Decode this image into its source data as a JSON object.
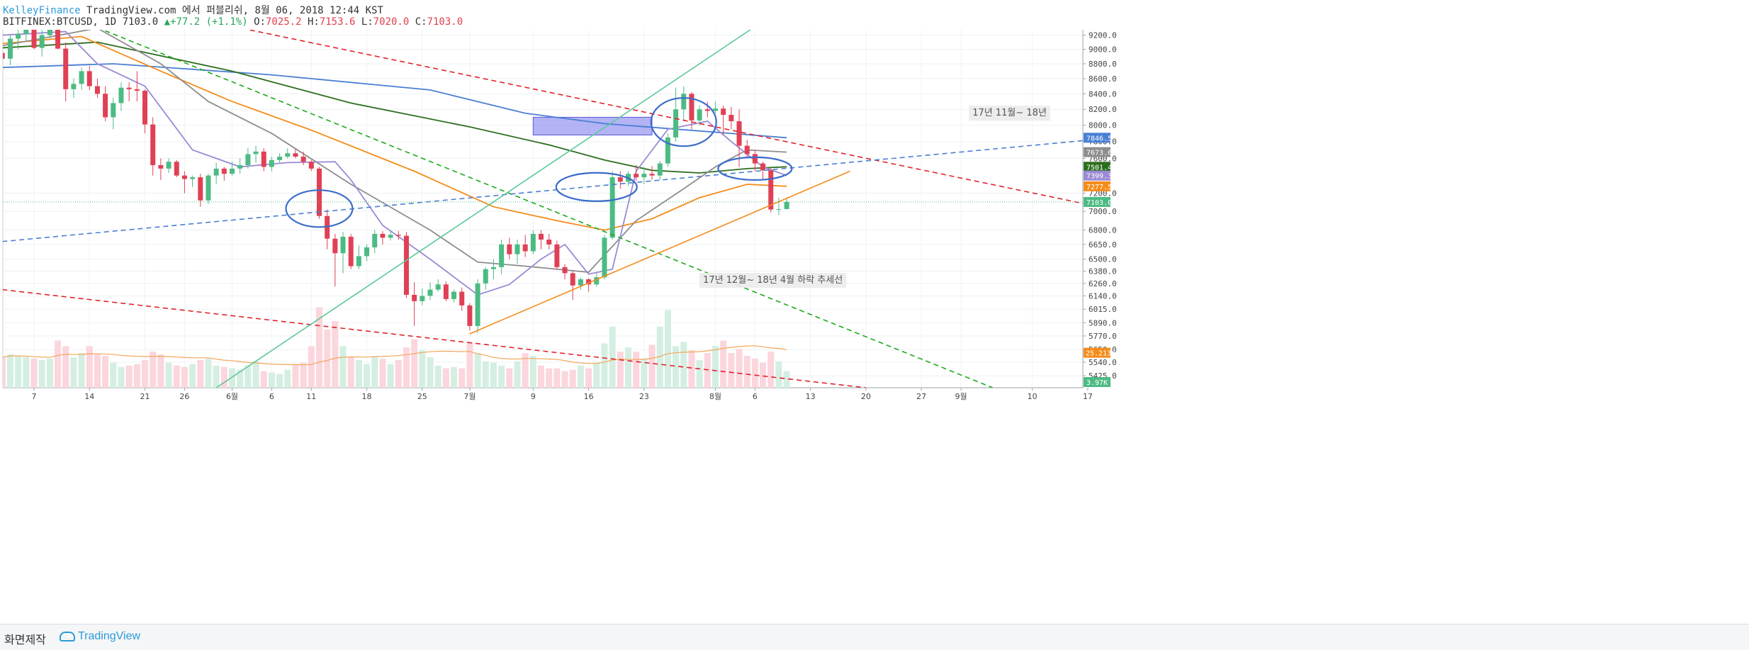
{
  "header": {
    "brand": "KelleyFinance",
    "published": "TradingView.com 에서 퍼블리쉬, 8월 06, 2018 12:44 KST",
    "symbol": "BITFINEX:BTCUSD, 1D",
    "last": "7103.0",
    "change": "+77.2 (+1.1%)",
    "o_label": "O:",
    "o": "7025.2",
    "h_label": "H:",
    "h": "7153.6",
    "l_label": "L:",
    "l": "7020.0",
    "c_label": "C:",
    "c": "7103.0"
  },
  "footer": {
    "credit": "화면제작",
    "logo": "TradingView",
    "logo_icon": "cloud-icon"
  },
  "chart_data": {
    "type": "candlestick",
    "symbol": "BITFINEX:BTCUSD",
    "interval": "1D",
    "ylim": [
      5325,
      9400
    ],
    "y_scale": "log",
    "up_color": "#4cbb83",
    "down_color": "#e04055",
    "grid": true,
    "price_ticks": [
      "9200.0",
      "9000.0",
      "8800.0",
      "8600.0",
      "8400.0",
      "8200.0",
      "8000.0",
      "7800.0",
      "7600.0",
      "7200.0",
      "7000.0",
      "6800.0",
      "6650.0",
      "6500.0",
      "6380.0",
      "6260.0",
      "6140.0",
      "6015.0",
      "5890.0",
      "5770.0",
      "5650.0",
      "5540.0",
      "5425.0"
    ],
    "time_labels": [
      {
        "text": "7",
        "day": 0
      },
      {
        "text": "14",
        "day": 7
      },
      {
        "text": "21",
        "day": 14
      },
      {
        "text": "26",
        "day": 19
      },
      {
        "text": "6월",
        "day": 25
      },
      {
        "text": "6",
        "day": 30
      },
      {
        "text": "11",
        "day": 35
      },
      {
        "text": "18",
        "day": 42
      },
      {
        "text": "25",
        "day": 49
      },
      {
        "text": "7월",
        "day": 55
      },
      {
        "text": "9",
        "day": 63
      },
      {
        "text": "16",
        "day": 70
      },
      {
        "text": "23",
        "day": 77
      },
      {
        "text": "8월",
        "day": 86
      },
      {
        "text": "6",
        "day": 91
      },
      {
        "text": "13",
        "day": 98
      },
      {
        "text": "20",
        "day": 105
      },
      {
        "text": "27",
        "day": 112
      },
      {
        "text": "9월",
        "day": 117
      },
      {
        "text": "10",
        "day": 126
      },
      {
        "text": "17",
        "day": 133
      }
    ],
    "start_day_index": -4,
    "candles_ohlc": [
      [
        8950,
        9250,
        8800,
        8870
      ],
      [
        8870,
        9200,
        8780,
        9150
      ],
      [
        9150,
        9300,
        9000,
        9220
      ],
      [
        9220,
        9400,
        9120,
        9300
      ],
      [
        9300,
        9400,
        9000,
        9020
      ],
      [
        9020,
        9300,
        8900,
        9200
      ],
      [
        9200,
        9400,
        9150,
        9300
      ],
      [
        9300,
        9380,
        9000,
        9010
      ],
      [
        9010,
        9100,
        8300,
        8460
      ],
      [
        8460,
        8600,
        8350,
        8530
      ],
      [
        8530,
        8750,
        8450,
        8700
      ],
      [
        8700,
        8770,
        8450,
        8500
      ],
      [
        8500,
        8600,
        8350,
        8400
      ],
      [
        8400,
        8500,
        8050,
        8100
      ],
      [
        8100,
        8350,
        7950,
        8280
      ],
      [
        8280,
        8550,
        8180,
        8480
      ],
      [
        8480,
        8550,
        8300,
        8460
      ],
      [
        8460,
        8700,
        8300,
        8440
      ],
      [
        8440,
        8460,
        7900,
        8010
      ],
      [
        8010,
        8100,
        7400,
        7520
      ],
      [
        7520,
        7600,
        7350,
        7480
      ],
      [
        7480,
        7600,
        7430,
        7560
      ],
      [
        7560,
        7580,
        7380,
        7400
      ],
      [
        7400,
        7450,
        7200,
        7360
      ],
      [
        7360,
        7400,
        7270,
        7380
      ],
      [
        7380,
        7420,
        7050,
        7120
      ],
      [
        7120,
        7420,
        7080,
        7400
      ],
      [
        7400,
        7550,
        7300,
        7480
      ],
      [
        7480,
        7500,
        7340,
        7420
      ],
      [
        7420,
        7560,
        7400,
        7480
      ],
      [
        7480,
        7600,
        7420,
        7520
      ],
      [
        7520,
        7720,
        7480,
        7650
      ],
      [
        7650,
        7750,
        7550,
        7680
      ],
      [
        7680,
        7720,
        7450,
        7500
      ],
      [
        7500,
        7620,
        7450,
        7580
      ],
      [
        7580,
        7660,
        7550,
        7620
      ],
      [
        7620,
        7720,
        7600,
        7660
      ],
      [
        7660,
        7710,
        7600,
        7620
      ],
      [
        7620,
        7680,
        7520,
        7560
      ],
      [
        7560,
        7580,
        7450,
        7480
      ],
      [
        7480,
        7500,
        6920,
        6950
      ],
      [
        6950,
        7020,
        6600,
        6710
      ],
      [
        6710,
        6760,
        6230,
        6560
      ],
      [
        6560,
        6780,
        6360,
        6730
      ],
      [
        6730,
        6760,
        6400,
        6430
      ],
      [
        6430,
        6640,
        6400,
        6530
      ],
      [
        6530,
        6650,
        6480,
        6620
      ],
      [
        6620,
        6800,
        6560,
        6760
      ],
      [
        6760,
        6790,
        6650,
        6720
      ],
      [
        6720,
        6800,
        6690,
        6750
      ],
      [
        6750,
        6790,
        6700,
        6740
      ],
      [
        6740,
        6780,
        6120,
        6150
      ],
      [
        6150,
        6270,
        5860,
        6090
      ],
      [
        6090,
        6210,
        6050,
        6140
      ],
      [
        6140,
        6270,
        6100,
        6200
      ],
      [
        6200,
        6300,
        6180,
        6250
      ],
      [
        6250,
        6280,
        6090,
        6110
      ],
      [
        6110,
        6200,
        6080,
        6180
      ],
      [
        6180,
        6220,
        6000,
        6050
      ],
      [
        6050,
        6070,
        5820,
        5860
      ],
      [
        5860,
        6300,
        5800,
        6260
      ],
      [
        6260,
        6420,
        6200,
        6400
      ],
      [
        6400,
        6500,
        6300,
        6420
      ],
      [
        6420,
        6700,
        6350,
        6650
      ],
      [
        6650,
        6720,
        6500,
        6550
      ],
      [
        6550,
        6700,
        6450,
        6650
      ],
      [
        6650,
        6750,
        6520,
        6580
      ],
      [
        6580,
        6800,
        6550,
        6760
      ],
      [
        6760,
        6800,
        6600,
        6700
      ],
      [
        6700,
        6760,
        6600,
        6650
      ],
      [
        6650,
        6690,
        6400,
        6420
      ],
      [
        6420,
        6450,
        6300,
        6360
      ],
      [
        6360,
        6380,
        6100,
        6240
      ],
      [
        6240,
        6320,
        6200,
        6300
      ],
      [
        6300,
        6310,
        6180,
        6250
      ],
      [
        6250,
        6360,
        6230,
        6320
      ],
      [
        6320,
        6750,
        6300,
        6720
      ],
      [
        6720,
        7450,
        6700,
        7380
      ],
      [
        7380,
        7450,
        7250,
        7330
      ],
      [
        7330,
        7450,
        7280,
        7420
      ],
      [
        7420,
        7520,
        7340,
        7380
      ],
      [
        7380,
        7500,
        7300,
        7420
      ],
      [
        7420,
        7510,
        7350,
        7400
      ],
      [
        7400,
        7570,
        7350,
        7540
      ],
      [
        7540,
        7900,
        7500,
        7850
      ],
      [
        7850,
        8480,
        7800,
        8200
      ],
      [
        8200,
        8500,
        8050,
        8400
      ],
      [
        8400,
        8420,
        7950,
        8060
      ],
      [
        8060,
        8250,
        8000,
        8200
      ],
      [
        8200,
        8300,
        8100,
        8180
      ],
      [
        8180,
        8300,
        8150,
        8210
      ],
      [
        8210,
        8250,
        7880,
        8130
      ],
      [
        8130,
        8230,
        7950,
        8050
      ],
      [
        8050,
        8200,
        7500,
        7750
      ],
      [
        7750,
        7820,
        7600,
        7650
      ],
      [
        7650,
        7700,
        7450,
        7540
      ],
      [
        7540,
        7560,
        7350,
        7460
      ],
      [
        7460,
        7480,
        6990,
        7020
      ],
      [
        7020,
        7150,
        6960,
        7025
      ],
      [
        7025,
        7153.6,
        7020,
        7103
      ]
    ],
    "volume_axis_labels": [
      "25.213K",
      "3.97K"
    ],
    "volume_max": 70000,
    "volumes": [
      22000,
      24000,
      23000,
      22000,
      21000,
      20000,
      21000,
      34000,
      30000,
      22000,
      25000,
      30000,
      24000,
      23000,
      18000,
      15000,
      16000,
      17000,
      20000,
      26000,
      24000,
      18000,
      16000,
      15000,
      17000,
      20000,
      21000,
      16000,
      15000,
      14000,
      13000,
      16000,
      19000,
      12000,
      11000,
      10000,
      13000,
      17000,
      18000,
      30000,
      58000,
      42000,
      48000,
      30000,
      22000,
      20000,
      17000,
      23000,
      21000,
      17000,
      20000,
      29000,
      35000,
      27000,
      22000,
      16000,
      14000,
      15000,
      14000,
      33000,
      25000,
      19000,
      18000,
      16000,
      14000,
      19000,
      25000,
      23000,
      16000,
      14000,
      14000,
      12000,
      13000,
      16000,
      14000,
      18000,
      32000,
      44000,
      26000,
      29000,
      26000,
      21000,
      31000,
      44000,
      56000,
      30000,
      33000,
      27000,
      20000,
      25000,
      30000,
      34000,
      25000,
      28000,
      23000,
      21000,
      18000,
      26000,
      19000,
      12000
    ],
    "moving_averages": [
      {
        "id": "ma-blue",
        "color": "#4a7fd4",
        "price_tag": "7846.5",
        "points": [
          [
            -4,
            8750
          ],
          [
            10,
            8800
          ],
          [
            30,
            8650
          ],
          [
            50,
            8450
          ],
          [
            62,
            8150
          ],
          [
            72,
            8020
          ],
          [
            80,
            7960
          ],
          [
            95,
            7846.5
          ]
        ]
      },
      {
        "id": "ma-darkgreen",
        "color": "#2c6e1e",
        "price_tag": "7501.4",
        "points": [
          [
            -4,
            9020
          ],
          [
            8,
            9100
          ],
          [
            25,
            8700
          ],
          [
            40,
            8280
          ],
          [
            55,
            7980
          ],
          [
            65,
            7760
          ],
          [
            72,
            7580
          ],
          [
            78,
            7460
          ],
          [
            84,
            7430
          ],
          [
            90,
            7480
          ],
          [
            95,
            7501.4
          ]
        ]
      },
      {
        "id": "ma-orange",
        "color": "#f58c1a",
        "price_tag": "7277.5",
        "points": [
          [
            -4,
            9080
          ],
          [
            6,
            9180
          ],
          [
            16,
            8700
          ],
          [
            25,
            8300
          ],
          [
            35,
            7940
          ],
          [
            48,
            7450
          ],
          [
            58,
            7050
          ],
          [
            66,
            6900
          ],
          [
            72,
            6800
          ],
          [
            78,
            6920
          ],
          [
            84,
            7150
          ],
          [
            90,
            7300
          ],
          [
            95,
            7277.5
          ]
        ]
      },
      {
        "id": "ma-gray",
        "color": "#8d8d8d",
        "price_tag": "7673.6",
        "points": [
          [
            -4,
            9050
          ],
          [
            8,
            9300
          ],
          [
            16,
            8800
          ],
          [
            22,
            8300
          ],
          [
            30,
            7900
          ],
          [
            40,
            7300
          ],
          [
            50,
            6800
          ],
          [
            56,
            6470
          ],
          [
            62,
            6430
          ],
          [
            70,
            6370
          ],
          [
            76,
            6900
          ],
          [
            82,
            7250
          ],
          [
            86,
            7500
          ],
          [
            90,
            7700
          ],
          [
            95,
            7673.6
          ]
        ]
      },
      {
        "id": "ma-purple",
        "color": "#9b8ad4",
        "price_tag": "7399.3",
        "points": [
          [
            -4,
            9200
          ],
          [
            4,
            9250
          ],
          [
            8,
            8800
          ],
          [
            14,
            8500
          ],
          [
            20,
            7700
          ],
          [
            26,
            7500
          ],
          [
            32,
            7550
          ],
          [
            38,
            7560
          ],
          [
            40,
            7350
          ],
          [
            44,
            6850
          ],
          [
            50,
            6500
          ],
          [
            56,
            6150
          ],
          [
            60,
            6250
          ],
          [
            64,
            6500
          ],
          [
            67,
            6650
          ],
          [
            70,
            6350
          ],
          [
            73,
            6400
          ],
          [
            76,
            7450
          ],
          [
            80,
            7950
          ],
          [
            85,
            8050
          ],
          [
            88,
            7800
          ],
          [
            92,
            7500
          ],
          [
            95,
            7399.3
          ]
        ]
      }
    ],
    "current_price_tag": "7103.0",
    "trend_lines": [
      {
        "id": "trendline-red-upper",
        "color": "#e0212b",
        "dash": true,
        "points": [
          [
            22,
            9400
          ],
          [
            140,
            6950
          ]
        ]
      },
      {
        "id": "trendline-red-lower",
        "color": "#e0212b",
        "dash": true,
        "points": [
          [
            -4,
            6200
          ],
          [
            105,
            5325
          ]
        ]
      },
      {
        "id": "trendline-green-dashed",
        "color": "#1aaa1a",
        "dash": true,
        "points": [
          [
            6,
            9400
          ],
          [
            121,
            5325
          ]
        ]
      },
      {
        "id": "trendline-blue-dashed",
        "color": "#4a7fd4",
        "dash": true,
        "points": [
          [
            -4,
            6680
          ],
          [
            140,
            7880
          ]
        ]
      },
      {
        "id": "trendline-green-solid",
        "color": "#5cc896",
        "dash": false,
        "points": [
          [
            23,
            5325
          ],
          [
            92,
            9400
          ]
        ]
      },
      {
        "id": "trendline-orange",
        "color": "#f58c1a",
        "dash": false,
        "points": [
          [
            55,
            5790
          ],
          [
            103,
            7450
          ]
        ]
      }
    ],
    "annotations": [
      {
        "id": "annotation-downtrend",
        "text": "17년 12월~ 18년 4월 하락 추세선",
        "day": 84,
        "price": 6300
      },
      {
        "id": "annotation-nov-jan",
        "text": "17년 11월~ 18년",
        "day": 118,
        "price": 8165
      }
    ],
    "highlight_box": {
      "day_start": 63,
      "day_end": 78,
      "price_low": 7880,
      "price_high": 8100,
      "color": "#8a8af0"
    },
    "ellipses": [
      {
        "day": 36,
        "price": 7030,
        "rx": 47,
        "ry": 26
      },
      {
        "day": 71,
        "price": 7270,
        "rx": 57,
        "ry": 20
      },
      {
        "day": 82,
        "price": 8040,
        "rx": 46,
        "ry": 34
      },
      {
        "day": 91,
        "price": 7480,
        "rx": 52,
        "ry": 16
      }
    ]
  }
}
